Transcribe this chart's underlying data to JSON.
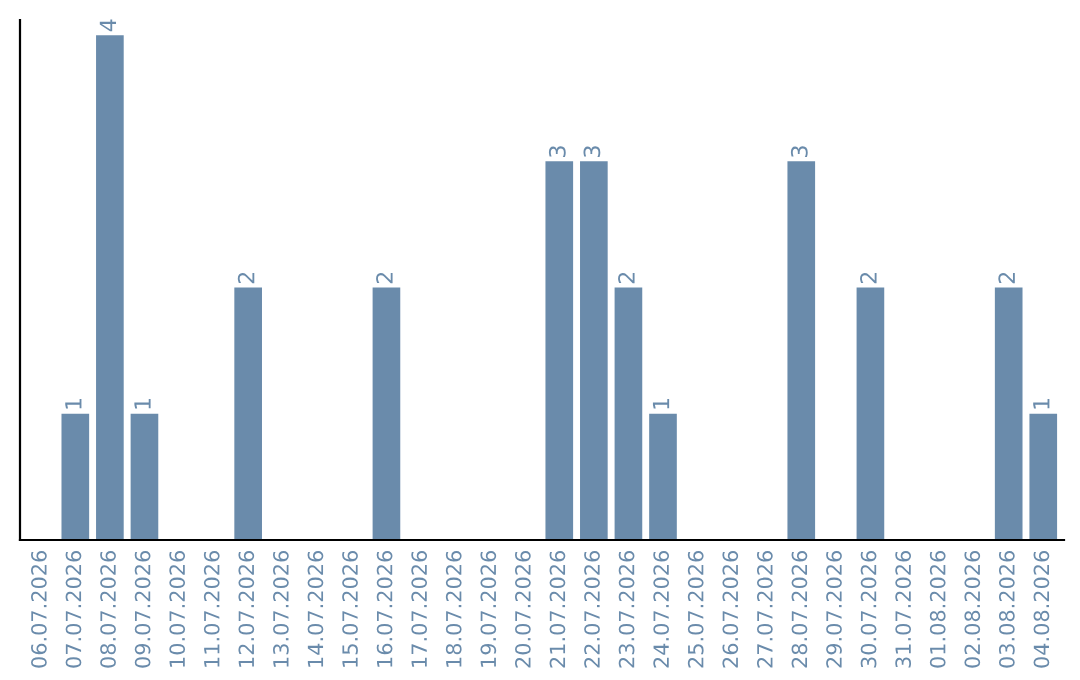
{
  "chart_data": {
    "type": "bar",
    "categories": [
      "06.07.2026",
      "07.07.2026",
      "08.07.2026",
      "09.07.2026",
      "10.07.2026",
      "11.07.2026",
      "12.07.2026",
      "13.07.2026",
      "14.07.2026",
      "15.07.2026",
      "16.07.2026",
      "17.07.2026",
      "18.07.2026",
      "19.07.2026",
      "20.07.2026",
      "21.07.2026",
      "22.07.2026",
      "23.07.2026",
      "24.07.2026",
      "25.07.2026",
      "26.07.2026",
      "27.07.2026",
      "28.07.2026",
      "29.07.2026",
      "30.07.2026",
      "31.07.2026",
      "01.08.2026",
      "02.08.2026",
      "03.08.2026",
      "04.08.2026"
    ],
    "values": [
      0,
      1,
      4,
      1,
      0,
      0,
      2,
      0,
      0,
      0,
      2,
      0,
      0,
      0,
      0,
      3,
      3,
      2,
      1,
      0,
      0,
      0,
      3,
      0,
      2,
      0,
      0,
      0,
      2,
      1
    ],
    "value_labels": [
      null,
      "1",
      "4",
      "1",
      null,
      null,
      "2",
      null,
      null,
      null,
      "2",
      null,
      null,
      null,
      null,
      "3",
      "3",
      "2",
      "1",
      null,
      null,
      null,
      "3",
      null,
      "2",
      null,
      null,
      null,
      "2",
      "1"
    ],
    "color": "#6a8bab",
    "tick_labels": "x",
    "grid": false,
    "legend": false
  }
}
